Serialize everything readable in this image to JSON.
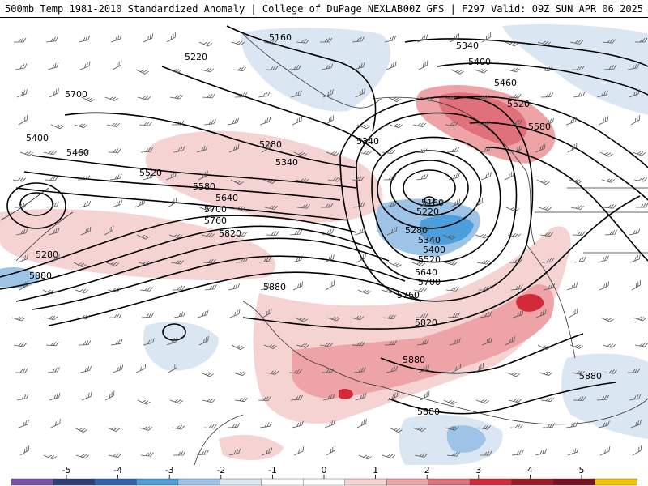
{
  "header": {
    "left_title": "500mb Temp 1981-2010 Standardized Anomaly | College of DuPage NEXLAB",
    "right_title": "00Z GFS | F297 Valid: 09Z SUN APR 06 2025"
  },
  "map": {
    "contour_labels": [
      "5160",
      "5220",
      "5280",
      "5340",
      "5400",
      "5460",
      "5520",
      "5580",
      "5640",
      "5700",
      "5760",
      "5820",
      "5880",
      "5340",
      "5400",
      "5460",
      "5520",
      "5580",
      "5160",
      "5220",
      "5280",
      "5340",
      "5400",
      "5520",
      "5640",
      "5700",
      "5760",
      "5820",
      "5880",
      "5880",
      "5880",
      "5880",
      "5280",
      "5340",
      "5700"
    ],
    "colors": {
      "warm1": "#f6d3d3",
      "warm2": "#eea3a6",
      "warm3": "#d22a36",
      "cool1": "#dbe6f3",
      "cool2": "#9dc3e6",
      "cool3": "#4a9fdc"
    }
  },
  "legend": {
    "tick_labels": [
      "-5",
      "-4",
      "-3",
      "-2",
      "-1",
      "0",
      "1",
      "2",
      "3",
      "4",
      "5"
    ],
    "colors": [
      "#7b52ab",
      "#2b3d7a",
      "#2f64b0",
      "#4a9fdc",
      "#9dc3e6",
      "#dbe6f3",
      "#ffffff",
      "#ffffff",
      "#f6d3d3",
      "#eea3a6",
      "#e0707a",
      "#d22a36",
      "#9b1c26",
      "#7a1020",
      "#f5c400"
    ]
  }
}
